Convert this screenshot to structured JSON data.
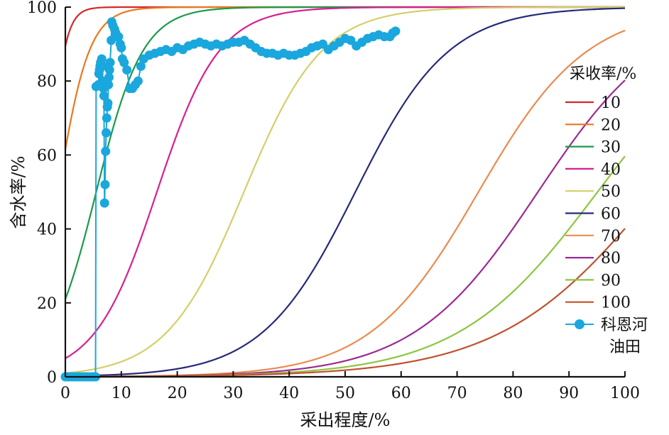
{
  "chart_data": {
    "type": "line",
    "title": "",
    "xlabel": "采出程度/%",
    "ylabel": "含水率/%",
    "xlim": [
      0,
      100
    ],
    "ylim": [
      0,
      100
    ],
    "x_ticks": [
      "0",
      "10",
      "20",
      "30",
      "40",
      "50",
      "60",
      "70",
      "80",
      "90",
      "100"
    ],
    "y_ticks": [
      "0",
      "20",
      "40",
      "60",
      "80",
      "100"
    ],
    "grid": false,
    "legend": {
      "title": "采收率/%",
      "position": "right"
    },
    "series": [
      {
        "name": "10",
        "color": "#d62728",
        "curve": {
          "a": 3.0,
          "b": 0.2,
          "x_at_start": 0,
          "y_at_start": 89.5
        }
      },
      {
        "name": "20",
        "color": "#e8791f",
        "curve": {
          "a": 3.0,
          "b": 0.1,
          "x_at_start": 0,
          "y_at_start": 61.5
        }
      },
      {
        "name": "30",
        "color": "#1a9a4a",
        "curve": {
          "a": 3.0,
          "b": 0.0667,
          "x_at_start": 0,
          "y_at_start": 21
        }
      },
      {
        "name": "40",
        "color": "#d6208f",
        "curve": {
          "a": 3.0,
          "b": 0.05,
          "x_at_start": 0,
          "y_at_start": 5
        }
      },
      {
        "name": "50",
        "color": "#d4cf6a",
        "curve": {
          "a": 3.0,
          "b": 0.04,
          "x_at_start": 0,
          "y_at_start": 1
        }
      },
      {
        "name": "60",
        "color": "#252a7a",
        "curve": {
          "a": 3.0,
          "b": 0.0333,
          "x_at_start": 0,
          "y_at_start": 0.2
        }
      },
      {
        "name": "70",
        "color": "#ec8a4e",
        "curve": {
          "a": 3.0,
          "b": 0.0286,
          "x_at_start": 0,
          "y_at_start": 0
        }
      },
      {
        "name": "80",
        "color": "#9c2a93",
        "curve": {
          "a": 3.0,
          "b": 0.025,
          "x_at_start": 0,
          "y_at_start": 0
        }
      },
      {
        "name": "90",
        "color": "#8cc63f",
        "curve": {
          "a": 3.0,
          "b": 0.0222,
          "x_at_start": 0,
          "y_at_start": 0
        }
      },
      {
        "name": "100",
        "color": "#c1502e",
        "curve": {
          "a": 3.0,
          "b": 0.02,
          "x_at_start": 0,
          "y_at_start": 0
        }
      },
      {
        "name": "科恩河\n油田",
        "name_lines": [
          "科恩河",
          "油田"
        ],
        "color": "#1aa7dd",
        "marker": "circle",
        "points": [
          [
            0.0,
            0
          ],
          [
            0.5,
            0
          ],
          [
            1.0,
            0
          ],
          [
            1.5,
            0
          ],
          [
            2.0,
            0
          ],
          [
            2.5,
            0
          ],
          [
            3.0,
            0
          ],
          [
            3.5,
            0
          ],
          [
            4.0,
            0
          ],
          [
            4.5,
            0
          ],
          [
            5.0,
            0
          ],
          [
            5.4,
            0
          ],
          [
            5.5,
            78.5
          ],
          [
            5.9,
            79
          ],
          [
            6.0,
            82
          ],
          [
            6.1,
            83
          ],
          [
            6.2,
            84
          ],
          [
            6.3,
            85
          ],
          [
            6.5,
            86
          ],
          [
            6.6,
            84
          ],
          [
            6.7,
            80
          ],
          [
            6.8,
            78
          ],
          [
            6.9,
            76
          ],
          [
            7.0,
            47
          ],
          [
            7.1,
            52
          ],
          [
            7.2,
            61
          ],
          [
            7.3,
            66
          ],
          [
            7.4,
            70
          ],
          [
            7.5,
            73
          ],
          [
            7.6,
            74
          ],
          [
            7.7,
            79
          ],
          [
            7.8,
            81
          ],
          [
            7.9,
            83
          ],
          [
            8.0,
            85
          ],
          [
            8.2,
            91
          ],
          [
            8.3,
            96
          ],
          [
            8.5,
            95
          ],
          [
            8.8,
            94
          ],
          [
            9.0,
            93
          ],
          [
            9.2,
            92
          ],
          [
            9.5,
            92
          ],
          [
            9.8,
            90
          ],
          [
            10.0,
            89
          ],
          [
            10.2,
            86
          ],
          [
            10.5,
            85
          ],
          [
            11.0,
            83
          ],
          [
            11.5,
            78
          ],
          [
            12.0,
            78
          ],
          [
            12.5,
            79
          ],
          [
            13.0,
            80
          ],
          [
            13.5,
            84
          ],
          [
            14.0,
            86
          ],
          [
            15,
            87
          ],
          [
            16,
            87.5
          ],
          [
            17,
            88
          ],
          [
            18,
            88.5
          ],
          [
            19,
            88
          ],
          [
            20,
            89
          ],
          [
            21,
            88.5
          ],
          [
            22,
            89.5
          ],
          [
            23,
            90
          ],
          [
            24,
            90.5
          ],
          [
            25,
            90
          ],
          [
            26,
            89.5
          ],
          [
            27,
            90
          ],
          [
            28,
            89.5
          ],
          [
            29,
            90
          ],
          [
            30,
            90.5
          ],
          [
            31,
            90.5
          ],
          [
            32,
            91
          ],
          [
            33,
            90
          ],
          [
            34,
            89
          ],
          [
            35,
            88
          ],
          [
            36,
            87.5
          ],
          [
            37,
            87.5
          ],
          [
            38,
            87
          ],
          [
            39,
            87.5
          ],
          [
            40,
            87
          ],
          [
            41,
            87
          ],
          [
            42,
            87.5
          ],
          [
            43,
            88
          ],
          [
            44,
            89
          ],
          [
            45,
            89.5
          ],
          [
            46,
            90
          ],
          [
            47,
            88.5
          ],
          [
            48,
            89.5
          ],
          [
            49,
            90.5
          ],
          [
            50,
            91.5
          ],
          [
            51,
            91
          ],
          [
            52,
            89.5
          ],
          [
            53,
            90.5
          ],
          [
            54,
            91.5
          ],
          [
            55,
            92
          ],
          [
            56,
            92.5
          ],
          [
            57,
            92
          ],
          [
            58,
            92
          ],
          [
            58.5,
            93
          ],
          [
            59,
            93.5
          ]
        ]
      }
    ]
  }
}
